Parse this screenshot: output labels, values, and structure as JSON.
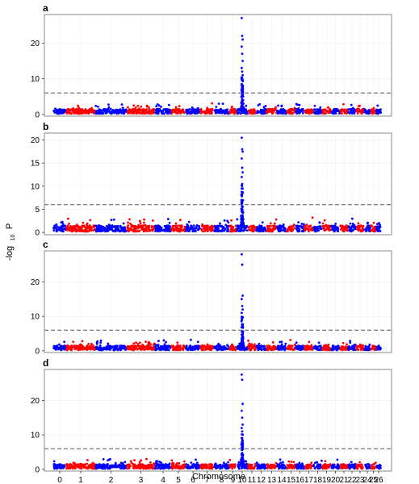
{
  "chart_data": {
    "type": "scatter",
    "subtype": "manhattan",
    "xlabel": "Chromosome",
    "ylabel_parts": [
      "-log",
      "10",
      "P"
    ],
    "x_ticks": [
      "0",
      "1",
      "2",
      "3",
      "4",
      "5",
      "6",
      "7",
      "8",
      "9",
      "10",
      "11",
      "12",
      "13",
      "14",
      "15",
      "16",
      "17",
      "18",
      "19",
      "20",
      "21",
      "22",
      "23",
      "24",
      "25",
      "26"
    ],
    "threshold": 6,
    "grid": true,
    "colors": {
      "odd": "#0000ff",
      "even": "#ff0000",
      "threshold": "#555555",
      "panel_border": "#888888",
      "grid": "#eeeeee"
    },
    "panels": [
      {
        "label": "a",
        "yticks": [
          0,
          10,
          20
        ],
        "ylim": [
          -0.5,
          28
        ],
        "peak_chr": "10",
        "top_points": [
          27,
          22,
          21,
          19,
          17,
          15,
          13,
          12,
          11
        ]
      },
      {
        "label": "b",
        "yticks": [
          0,
          5,
          10,
          15,
          20
        ],
        "ylim": [
          -0.5,
          21.5
        ],
        "peak_chr": "10",
        "top_points": [
          20.5,
          18,
          17.5,
          16,
          14,
          13,
          12,
          10.5,
          9.5
        ]
      },
      {
        "label": "c",
        "yticks": [
          0,
          10,
          20
        ],
        "ylim": [
          -0.5,
          29
        ],
        "peak_chr": "10",
        "top_points": [
          28,
          25,
          16,
          15,
          13,
          12,
          11
        ]
      },
      {
        "label": "d",
        "yticks": [
          0,
          10,
          20
        ],
        "ylim": [
          -0.5,
          29
        ],
        "peak_chr": "10",
        "top_points": [
          27.5,
          26,
          19,
          17,
          15,
          13,
          12,
          11
        ]
      }
    ]
  }
}
